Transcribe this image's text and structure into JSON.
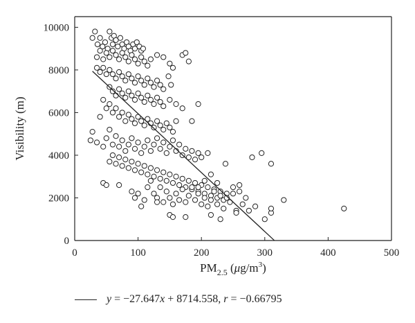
{
  "chart_data": {
    "type": "scatter",
    "xlabel_base": "PM",
    "xlabel_sub": "2.5",
    "xlabel_unit_open": " (",
    "xlabel_unit_italic": "μ",
    "xlabel_unit_rest": "g/m",
    "xlabel_unit_sup": "3",
    "xlabel_unit_close": ")",
    "ylabel": "Visibility (m)",
    "xlim": [
      0,
      500
    ],
    "ylim": [
      0,
      10500
    ],
    "xticks": [
      0,
      100,
      200,
      300,
      400,
      500
    ],
    "yticks": [
      0,
      2000,
      4000,
      6000,
      8000,
      10000
    ],
    "grid": false,
    "legend_position": "bottom",
    "fit": {
      "slope": -27.647,
      "intercept": 8714.558,
      "r": -0.66795,
      "x_range": [
        28,
        315
      ]
    },
    "legend": {
      "eq_y": "y",
      "eq_mid": " = −27.647",
      "eq_x": "x",
      "eq_tail": " + 8714.558, ",
      "eq_r": "r",
      "eq_r_val": " = −0.66795"
    },
    "points": [
      [
        28,
        9500
      ],
      [
        32,
        9800
      ],
      [
        36,
        9200
      ],
      [
        40,
        9500
      ],
      [
        44,
        9100
      ],
      [
        48,
        9300
      ],
      [
        52,
        9000
      ],
      [
        55,
        9800
      ],
      [
        58,
        9500
      ],
      [
        60,
        9200
      ],
      [
        62,
        9600
      ],
      [
        65,
        9400
      ],
      [
        68,
        9100
      ],
      [
        72,
        9500
      ],
      [
        75,
        9200
      ],
      [
        78,
        9000
      ],
      [
        82,
        9300
      ],
      [
        85,
        9100
      ],
      [
        88,
        8900
      ],
      [
        92,
        9200
      ],
      [
        95,
        9000
      ],
      [
        98,
        9300
      ],
      [
        102,
        9100
      ],
      [
        105,
        8900
      ],
      [
        108,
        9000
      ],
      [
        35,
        8600
      ],
      [
        40,
        8900
      ],
      [
        45,
        8500
      ],
      [
        50,
        8800
      ],
      [
        55,
        8600
      ],
      [
        60,
        8900
      ],
      [
        65,
        8700
      ],
      [
        70,
        8500
      ],
      [
        75,
        8800
      ],
      [
        80,
        8600
      ],
      [
        85,
        8400
      ],
      [
        90,
        8700
      ],
      [
        95,
        8500
      ],
      [
        100,
        8300
      ],
      [
        105,
        8600
      ],
      [
        110,
        8400
      ],
      [
        115,
        8200
      ],
      [
        120,
        8500
      ],
      [
        130,
        8700
      ],
      [
        140,
        8600
      ],
      [
        150,
        8300
      ],
      [
        155,
        8100
      ],
      [
        170,
        8700
      ],
      [
        175,
        8800
      ],
      [
        180,
        8400
      ],
      [
        35,
        8100
      ],
      [
        40,
        7900
      ],
      [
        45,
        8100
      ],
      [
        50,
        7800
      ],
      [
        55,
        8000
      ],
      [
        60,
        7800
      ],
      [
        65,
        7600
      ],
      [
        70,
        7900
      ],
      [
        75,
        7700
      ],
      [
        80,
        7500
      ],
      [
        85,
        7800
      ],
      [
        90,
        7600
      ],
      [
        95,
        7400
      ],
      [
        100,
        7700
      ],
      [
        105,
        7500
      ],
      [
        110,
        7300
      ],
      [
        115,
        7600
      ],
      [
        120,
        7400
      ],
      [
        125,
        7200
      ],
      [
        130,
        7500
      ],
      [
        135,
        7300
      ],
      [
        140,
        7100
      ],
      [
        148,
        7700
      ],
      [
        152,
        7300
      ],
      [
        55,
        7200
      ],
      [
        60,
        7000
      ],
      [
        65,
        6800
      ],
      [
        70,
        7100
      ],
      [
        75,
        6900
      ],
      [
        80,
        6700
      ],
      [
        85,
        7000
      ],
      [
        90,
        6800
      ],
      [
        95,
        6600
      ],
      [
        100,
        6900
      ],
      [
        105,
        6700
      ],
      [
        110,
        6500
      ],
      [
        115,
        6800
      ],
      [
        120,
        6600
      ],
      [
        125,
        6400
      ],
      [
        130,
        6700
      ],
      [
        135,
        6500
      ],
      [
        140,
        6300
      ],
      [
        150,
        6600
      ],
      [
        160,
        6400
      ],
      [
        170,
        6200
      ],
      [
        195,
        6400
      ],
      [
        45,
        6600
      ],
      [
        50,
        6200
      ],
      [
        55,
        6400
      ],
      [
        60,
        6000
      ],
      [
        65,
        6200
      ],
      [
        70,
        5800
      ],
      [
        75,
        6000
      ],
      [
        80,
        5600
      ],
      [
        85,
        5900
      ],
      [
        90,
        5700
      ],
      [
        95,
        5500
      ],
      [
        100,
        5800
      ],
      [
        105,
        5600
      ],
      [
        110,
        5400
      ],
      [
        115,
        5700
      ],
      [
        120,
        5500
      ],
      [
        125,
        5300
      ],
      [
        130,
        5600
      ],
      [
        135,
        5400
      ],
      [
        140,
        5200
      ],
      [
        145,
        5500
      ],
      [
        150,
        5300
      ],
      [
        155,
        5100
      ],
      [
        160,
        5600
      ],
      [
        185,
        5600
      ],
      [
        28,
        5100
      ],
      [
        35,
        4600
      ],
      [
        40,
        5800
      ],
      [
        45,
        4400
      ],
      [
        50,
        4800
      ],
      [
        55,
        5200
      ],
      [
        60,
        4500
      ],
      [
        65,
        4900
      ],
      [
        70,
        4400
      ],
      [
        75,
        4700
      ],
      [
        80,
        4200
      ],
      [
        85,
        4500
      ],
      [
        90,
        4800
      ],
      [
        95,
        4300
      ],
      [
        100,
        4600
      ],
      [
        105,
        4100
      ],
      [
        110,
        4400
      ],
      [
        115,
        4700
      ],
      [
        120,
        4200
      ],
      [
        125,
        4500
      ],
      [
        130,
        4800
      ],
      [
        135,
        4300
      ],
      [
        140,
        4600
      ],
      [
        145,
        4100
      ],
      [
        150,
        4400
      ],
      [
        155,
        4700
      ],
      [
        160,
        4200
      ],
      [
        165,
        4500
      ],
      [
        170,
        4000
      ],
      [
        175,
        4300
      ],
      [
        180,
        3900
      ],
      [
        185,
        4200
      ],
      [
        190,
        3800
      ],
      [
        195,
        4100
      ],
      [
        200,
        3900
      ],
      [
        210,
        4100
      ],
      [
        25,
        4700
      ],
      [
        55,
        3700
      ],
      [
        60,
        4000
      ],
      [
        65,
        3600
      ],
      [
        70,
        3900
      ],
      [
        75,
        3500
      ],
      [
        80,
        3800
      ],
      [
        85,
        3400
      ],
      [
        90,
        3700
      ],
      [
        95,
        3300
      ],
      [
        100,
        3600
      ],
      [
        105,
        3200
      ],
      [
        110,
        3500
      ],
      [
        115,
        3100
      ],
      [
        120,
        3400
      ],
      [
        125,
        3000
      ],
      [
        130,
        3300
      ],
      [
        135,
        2900
      ],
      [
        140,
        3200
      ],
      [
        145,
        2800
      ],
      [
        150,
        3100
      ],
      [
        155,
        2700
      ],
      [
        160,
        3000
      ],
      [
        165,
        2600
      ],
      [
        170,
        2900
      ],
      [
        175,
        2500
      ],
      [
        180,
        2800
      ],
      [
        185,
        2400
      ],
      [
        190,
        2700
      ],
      [
        195,
        2300
      ],
      [
        200,
        2600
      ],
      [
        205,
        2200
      ],
      [
        210,
        2500
      ],
      [
        215,
        2100
      ],
      [
        220,
        2400
      ],
      [
        225,
        2000
      ],
      [
        230,
        2300
      ],
      [
        235,
        1900
      ],
      [
        240,
        2200
      ],
      [
        45,
        2700
      ],
      [
        50,
        2600
      ],
      [
        70,
        2600
      ],
      [
        90,
        2300
      ],
      [
        95,
        2000
      ],
      [
        100,
        2200
      ],
      [
        110,
        1900
      ],
      [
        115,
        2500
      ],
      [
        120,
        2800
      ],
      [
        125,
        2200
      ],
      [
        130,
        2000
      ],
      [
        135,
        2500
      ],
      [
        140,
        1800
      ],
      [
        145,
        2300
      ],
      [
        150,
        2000
      ],
      [
        155,
        1700
      ],
      [
        160,
        2200
      ],
      [
        165,
        1900
      ],
      [
        170,
        2400
      ],
      [
        175,
        1800
      ],
      [
        180,
        2100
      ],
      [
        185,
        2500
      ],
      [
        190,
        1900
      ],
      [
        195,
        2200
      ],
      [
        200,
        1700
      ],
      [
        205,
        2000
      ],
      [
        210,
        1600
      ],
      [
        215,
        1900
      ],
      [
        220,
        2300
      ],
      [
        225,
        1700
      ],
      [
        230,
        2100
      ],
      [
        235,
        1500
      ],
      [
        240,
        2000
      ],
      [
        245,
        1800
      ],
      [
        250,
        2200
      ],
      [
        255,
        1400
      ],
      [
        260,
        2600
      ],
      [
        265,
        1700
      ],
      [
        270,
        2000
      ],
      [
        275,
        1400
      ],
      [
        285,
        1600
      ],
      [
        105,
        1600
      ],
      [
        130,
        1800
      ],
      [
        150,
        1200
      ],
      [
        155,
        1100
      ],
      [
        175,
        1100
      ],
      [
        215,
        1200
      ],
      [
        230,
        1000
      ],
      [
        255,
        1300
      ],
      [
        300,
        1000
      ],
      [
        310,
        1300
      ],
      [
        310,
        1500
      ],
      [
        330,
        1900
      ],
      [
        425,
        1500
      ],
      [
        238,
        3600
      ],
      [
        280,
        3900
      ],
      [
        295,
        4100
      ],
      [
        310,
        3600
      ],
      [
        195,
        2500
      ],
      [
        205,
        2800
      ],
      [
        215,
        3100
      ],
      [
        225,
        2700
      ],
      [
        250,
        2500
      ],
      [
        260,
        2300
      ]
    ]
  }
}
